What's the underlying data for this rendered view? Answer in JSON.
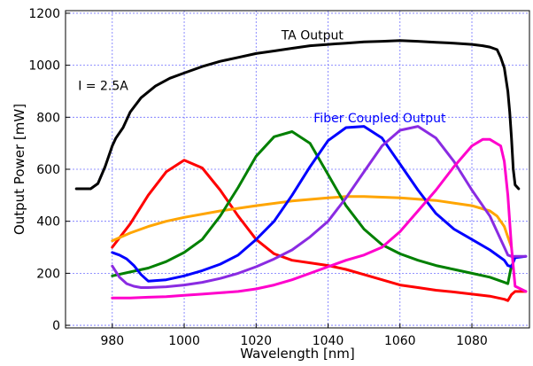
{
  "chart_data": {
    "type": "line",
    "title": "",
    "xlabel": "Wavelength [nm]",
    "ylabel": "Output Power [mW]",
    "xlim": [
      967,
      1096
    ],
    "ylim": [
      -10,
      1210
    ],
    "xticks": [
      980,
      1000,
      1020,
      1040,
      1060,
      1080
    ],
    "yticks": [
      0,
      200,
      400,
      600,
      800,
      1000,
      1200
    ],
    "grid": true,
    "legend": "none",
    "annotations": [
      {
        "text": "TA Output",
        "color": "#000000",
        "at": [
          1027,
          1100
        ]
      },
      {
        "text": "I = 2.5A",
        "color": "#000000",
        "at": [
          970.5,
          905
        ]
      },
      {
        "text": "Fiber Coupled Output",
        "color": "#0000ff",
        "at": [
          1036,
          780
        ]
      }
    ],
    "series": [
      {
        "color": "#000000",
        "stroke": 3,
        "x": [
          970,
          974,
          976,
          978,
          980,
          981,
          983,
          985,
          988,
          992,
          996,
          1000,
          1005,
          1010,
          1015,
          1020,
          1025,
          1030,
          1035,
          1040,
          1045,
          1050,
          1055,
          1060,
          1065,
          1070,
          1075,
          1080,
          1083,
          1085,
          1087,
          1088,
          1089,
          1090,
          1090.5,
          1091,
          1091.5,
          1092,
          1093
        ],
        "y": [
          525,
          525,
          545,
          610,
          690,
          720,
          760,
          820,
          875,
          920,
          950,
          970,
          995,
          1015,
          1030,
          1045,
          1055,
          1065,
          1075,
          1080,
          1085,
          1090,
          1092,
          1095,
          1092,
          1088,
          1085,
          1080,
          1075,
          1070,
          1060,
          1030,
          990,
          900,
          820,
          720,
          600,
          540,
          525
        ]
      },
      {
        "color": "#ff0000",
        "stroke": 3,
        "x": [
          980,
          985,
          990,
          995,
          1000,
          1005,
          1010,
          1015,
          1020,
          1025,
          1030,
          1035,
          1040,
          1045,
          1050,
          1055,
          1060,
          1065,
          1070,
          1075,
          1080,
          1085,
          1089,
          1090,
          1091,
          1092,
          1095
        ],
        "y": [
          300,
          390,
          500,
          590,
          635,
          605,
          520,
          420,
          330,
          275,
          250,
          240,
          230,
          215,
          195,
          175,
          155,
          145,
          135,
          128,
          120,
          112,
          100,
          95,
          118,
          130,
          130
        ]
      },
      {
        "color": "#ffa500",
        "stroke": 3,
        "x": [
          980,
          985,
          990,
          995,
          1000,
          1010,
          1020,
          1030,
          1040,
          1045,
          1050,
          1060,
          1070,
          1080,
          1085,
          1087,
          1089,
          1090,
          1091
        ],
        "y": [
          325,
          355,
          380,
          400,
          415,
          440,
          460,
          478,
          490,
          495,
          495,
          490,
          480,
          460,
          440,
          420,
          380,
          340,
          300
        ]
      },
      {
        "color": "#008000",
        "stroke": 3,
        "x": [
          980,
          985,
          990,
          995,
          1000,
          1005,
          1010,
          1015,
          1020,
          1025,
          1030,
          1035,
          1040,
          1045,
          1050,
          1055,
          1060,
          1065,
          1070,
          1075,
          1080,
          1085,
          1089,
          1090,
          1091
        ],
        "y": [
          190,
          205,
          220,
          245,
          280,
          330,
          420,
          530,
          650,
          725,
          745,
          700,
          580,
          460,
          370,
          310,
          275,
          250,
          230,
          215,
          200,
          185,
          165,
          160,
          230
        ]
      },
      {
        "color": "#0000ff",
        "stroke": 3,
        "x": [
          980,
          982,
          984,
          986,
          988,
          990,
          995,
          1000,
          1005,
          1010,
          1015,
          1020,
          1025,
          1030,
          1035,
          1040,
          1045,
          1050,
          1055,
          1060,
          1065,
          1070,
          1075,
          1080,
          1085,
          1089,
          1090,
          1091,
          1092,
          1095
        ],
        "y": [
          280,
          270,
          255,
          230,
          195,
          170,
          175,
          190,
          210,
          235,
          270,
          330,
          400,
          500,
          610,
          710,
          760,
          765,
          720,
          620,
          520,
          430,
          370,
          330,
          290,
          250,
          230,
          225,
          260,
          265
        ]
      },
      {
        "color": "#8a2be2",
        "stroke": 3,
        "x": [
          980,
          982,
          984,
          986,
          988,
          990,
          995,
          1000,
          1005,
          1010,
          1015,
          1020,
          1025,
          1030,
          1035,
          1040,
          1045,
          1050,
          1055,
          1060,
          1065,
          1070,
          1075,
          1080,
          1085,
          1089,
          1090,
          1091,
          1092,
          1095
        ],
        "y": [
          228,
          185,
          160,
          150,
          145,
          145,
          148,
          155,
          165,
          180,
          200,
          225,
          255,
          290,
          340,
          400,
          490,
          590,
          690,
          750,
          765,
          720,
          630,
          520,
          420,
          300,
          270,
          265,
          265,
          265
        ]
      },
      {
        "color": "#ff00cc",
        "stroke": 3,
        "x": [
          980,
          985,
          990,
          995,
          1000,
          1005,
          1010,
          1015,
          1020,
          1025,
          1030,
          1035,
          1040,
          1045,
          1050,
          1055,
          1060,
          1065,
          1070,
          1075,
          1080,
          1083,
          1085,
          1088,
          1089,
          1090,
          1091,
          1092,
          1095
        ],
        "y": [
          105,
          105,
          108,
          110,
          115,
          120,
          125,
          130,
          140,
          155,
          175,
          200,
          225,
          250,
          270,
          300,
          360,
          440,
          520,
          610,
          690,
          715,
          715,
          690,
          630,
          500,
          300,
          150,
          130
        ]
      }
    ]
  }
}
